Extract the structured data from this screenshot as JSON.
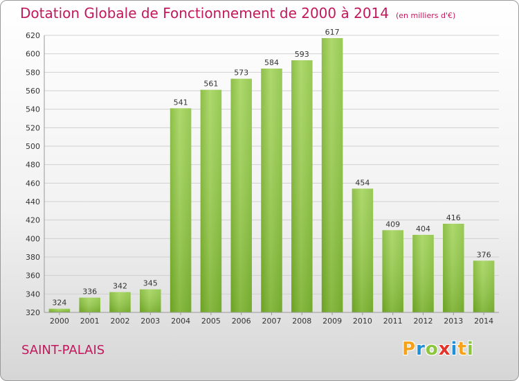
{
  "header": {
    "title": "Dotation Globale de Fonctionnement de 2000 à 2014",
    "subtitle": "(en milliers d'€)"
  },
  "footer": {
    "commune": "SAINT-PALAIS",
    "logo_letters": [
      {
        "char": "P",
        "color": "#f7a21b"
      },
      {
        "char": "r",
        "color": "#1e90d8"
      },
      {
        "char": "o",
        "color": "#8cc63f"
      },
      {
        "char": "x",
        "color": "#e5332a"
      },
      {
        "char": "i",
        "color": "#1e90d8"
      },
      {
        "char": "t",
        "color": "#f7a21b"
      },
      {
        "char": "i",
        "color": "#8cc63f"
      }
    ]
  },
  "chart_data": {
    "type": "bar",
    "categories": [
      "2000",
      "2001",
      "2002",
      "2003",
      "2004",
      "2005",
      "2006",
      "2007",
      "2008",
      "2009",
      "2010",
      "2011",
      "2012",
      "2013",
      "2014"
    ],
    "values": [
      324,
      336,
      342,
      345,
      541,
      561,
      573,
      584,
      593,
      617,
      454,
      409,
      404,
      416,
      376
    ],
    "title": "Dotation Globale de Fonctionnement de 2000 à 2014",
    "subtitle": "(en milliers d'€)",
    "xlabel": "",
    "ylabel": "",
    "ylim": [
      320,
      620
    ],
    "yticks": [
      320,
      340,
      360,
      380,
      400,
      420,
      440,
      460,
      480,
      500,
      520,
      540,
      560,
      580,
      600,
      620
    ],
    "grid": true,
    "data_labels": true,
    "colors": {
      "bar_light": "#a3d657",
      "bar_dark": "#6aa120",
      "grid": "#d0d0d0",
      "axis": "#999999"
    }
  }
}
